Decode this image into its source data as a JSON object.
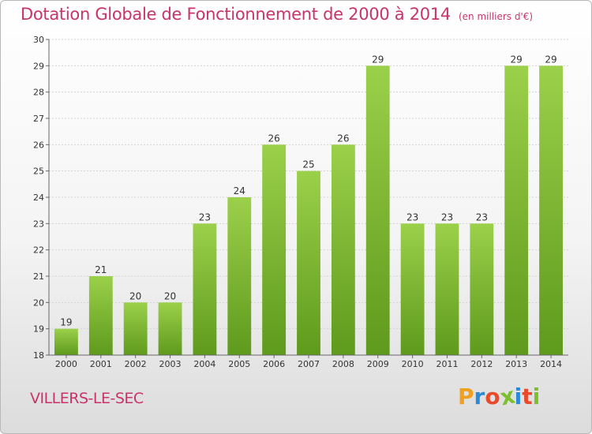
{
  "header": {
    "title": "Dotation Globale de Fonctionnement de 2000 à 2014",
    "unit": "(en milliers d'€)"
  },
  "footer": {
    "town": "VILLERS-LE-SEC",
    "logo": {
      "letters": [
        "P",
        "r",
        "o",
        "x",
        "i",
        "t",
        "i"
      ],
      "colors": [
        "#f0a020",
        "#2a8ad8",
        "#e84a2a",
        "#7cbf2a",
        "#2a8ad8",
        "#e84a2a",
        "#7cbf2a"
      ]
    }
  },
  "colors": {
    "bar_top": "#9bd04a",
    "bar_bottom": "#5e9a1c",
    "text": "#c8336a",
    "grid": "#d4d4d4"
  },
  "chart_data": {
    "type": "bar",
    "title": "Dotation Globale de Fonctionnement de 2000 à 2014",
    "subtitle": "(en milliers d'€)",
    "categories": [
      "2000",
      "2001",
      "2002",
      "2003",
      "2004",
      "2005",
      "2006",
      "2007",
      "2008",
      "2009",
      "2010",
      "2011",
      "2012",
      "2013",
      "2014"
    ],
    "values": [
      19,
      21,
      20,
      20,
      23,
      24,
      26,
      25,
      26,
      29,
      23,
      23,
      23,
      29,
      29
    ],
    "ylim": [
      18,
      30
    ],
    "yticks": [
      18,
      19,
      20,
      21,
      22,
      23,
      24,
      25,
      26,
      27,
      28,
      29,
      30
    ],
    "xlabel": "",
    "ylabel": "",
    "grid": true,
    "legend": "none"
  }
}
